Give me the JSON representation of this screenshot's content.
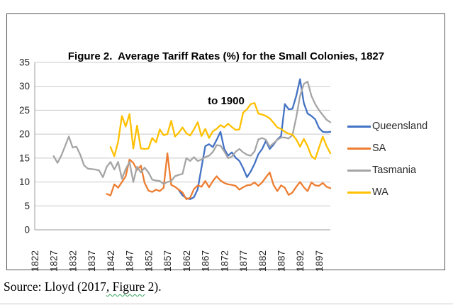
{
  "figure": {
    "title_line1": "Figure 2.  Average Tariff Rates (%) for the Small Colonies, 1827",
    "title_line2": "to 1900",
    "source_prefix": "Source: Lloyd (2017",
    "source_squiggle": ", Figure",
    "source_suffix": " 2)."
  },
  "chart_data": {
    "type": "line",
    "title": "Figure 2.  Average Tariff Rates (%) for the Small Colonies, 1827 to 1900",
    "xlabel": "",
    "ylabel": "",
    "x_range": [
      1822,
      1900
    ],
    "ylim": [
      0,
      35
    ],
    "y_ticks": [
      0,
      5,
      10,
      15,
      20,
      25,
      30,
      35
    ],
    "x_ticks": [
      1822,
      1827,
      1832,
      1837,
      1842,
      1847,
      1852,
      1857,
      1862,
      1867,
      1872,
      1877,
      1882,
      1887,
      1892,
      1897
    ],
    "grid": "horizontal",
    "legend_position": "right",
    "axis_color": "#9b9b9b",
    "gridline_color": "#c9c9c9",
    "tick_label_color": "#262626",
    "series": [
      {
        "name": "Queensland",
        "color": "#4472C4",
        "start_year": 1860,
        "values": [
          8.3,
          7.2,
          6.6,
          6.4,
          6.8,
          8.5,
          13.0,
          17.5,
          17.9,
          17.3,
          18.8,
          20.5,
          16.9,
          15.5,
          16.2,
          15.1,
          14.4,
          12.9,
          11.0,
          12.2,
          13.8,
          15.8,
          16.9,
          18.6,
          16.9,
          17.8,
          18.9,
          19.6,
          26.3,
          25.2,
          25.3,
          28.0,
          31.5,
          26.5,
          24.3,
          23.8,
          23.1,
          21.3,
          20.5,
          20.4,
          20.5
        ]
      },
      {
        "name": "SA",
        "color": "#ED7D31",
        "start_year": 1841,
        "values": [
          7.5,
          7.2,
          9.5,
          8.8,
          10.0,
          11.2,
          14.7,
          14.0,
          12.5,
          13.4,
          9.8,
          8.2,
          7.9,
          8.4,
          8.1,
          8.8,
          16.0,
          9.4,
          9.0,
          8.4,
          7.8,
          6.4,
          6.7,
          8.5,
          9.3,
          9.0,
          10.2,
          8.9,
          10.2,
          11.2,
          10.3,
          9.8,
          9.5,
          9.4,
          9.2,
          8.4,
          8.9,
          9.3,
          9.4,
          9.9,
          9.2,
          9.9,
          11.0,
          12.0,
          9.4,
          8.1,
          9.3,
          8.8,
          7.3,
          7.8,
          9.0,
          10.0,
          8.9,
          8.1,
          9.9,
          9.3,
          9.2,
          9.8,
          9.0,
          8.7
        ]
      },
      {
        "name": "Tasmania",
        "color": "#A5A5A5",
        "start_year": 1827,
        "values": [
          15.4,
          14.0,
          15.5,
          17.5,
          19.5,
          17.2,
          17.4,
          15.7,
          13.5,
          12.8,
          12.7,
          12.6,
          12.4,
          11.0,
          13.2,
          14.2,
          12.6,
          14.2,
          10.7,
          12.7,
          14.2,
          10.0,
          13.2,
          12.0,
          13.0,
          12.0,
          10.5,
          10.3,
          10.2,
          9.6,
          10.0,
          10.2,
          11.2,
          11.5,
          11.7,
          15.0,
          14.4,
          15.2,
          14.4,
          14.7,
          15.2,
          15.5,
          16.3,
          17.7,
          17.6,
          16.4,
          15.0,
          15.3,
          16.3,
          16.9,
          16.2,
          15.7,
          15.5,
          16.4,
          18.9,
          19.2,
          18.8,
          17.4,
          18.1,
          18.8,
          19.3,
          19.3,
          19.1,
          19.8,
          23.5,
          28.0,
          30.5,
          31.0,
          28.0,
          26.3,
          25.0,
          24.0,
          23.0,
          22.5
        ]
      },
      {
        "name": "WA",
        "color": "#FFC000",
        "start_year": 1842,
        "values": [
          17.3,
          15.4,
          18.4,
          23.8,
          21.6,
          24.2,
          17.0,
          21.8,
          17.0,
          16.9,
          17.0,
          19.2,
          18.3,
          21.0,
          19.8,
          20.0,
          22.8,
          19.5,
          20.3,
          21.4,
          20.2,
          19.7,
          21.0,
          22.5,
          19.6,
          21.1,
          19.2,
          20.6,
          21.1,
          21.9,
          21.4,
          22.2,
          21.5,
          20.9,
          21.0,
          24.5,
          25.2,
          26.3,
          26.5,
          24.3,
          24.1,
          23.8,
          23.3,
          22.4,
          21.4,
          21.1,
          20.5,
          20.1,
          19.9,
          18.9,
          17.4,
          19.0,
          17.5,
          15.4,
          14.8,
          17.2,
          19.5,
          17.5,
          16.0
        ]
      }
    ]
  }
}
